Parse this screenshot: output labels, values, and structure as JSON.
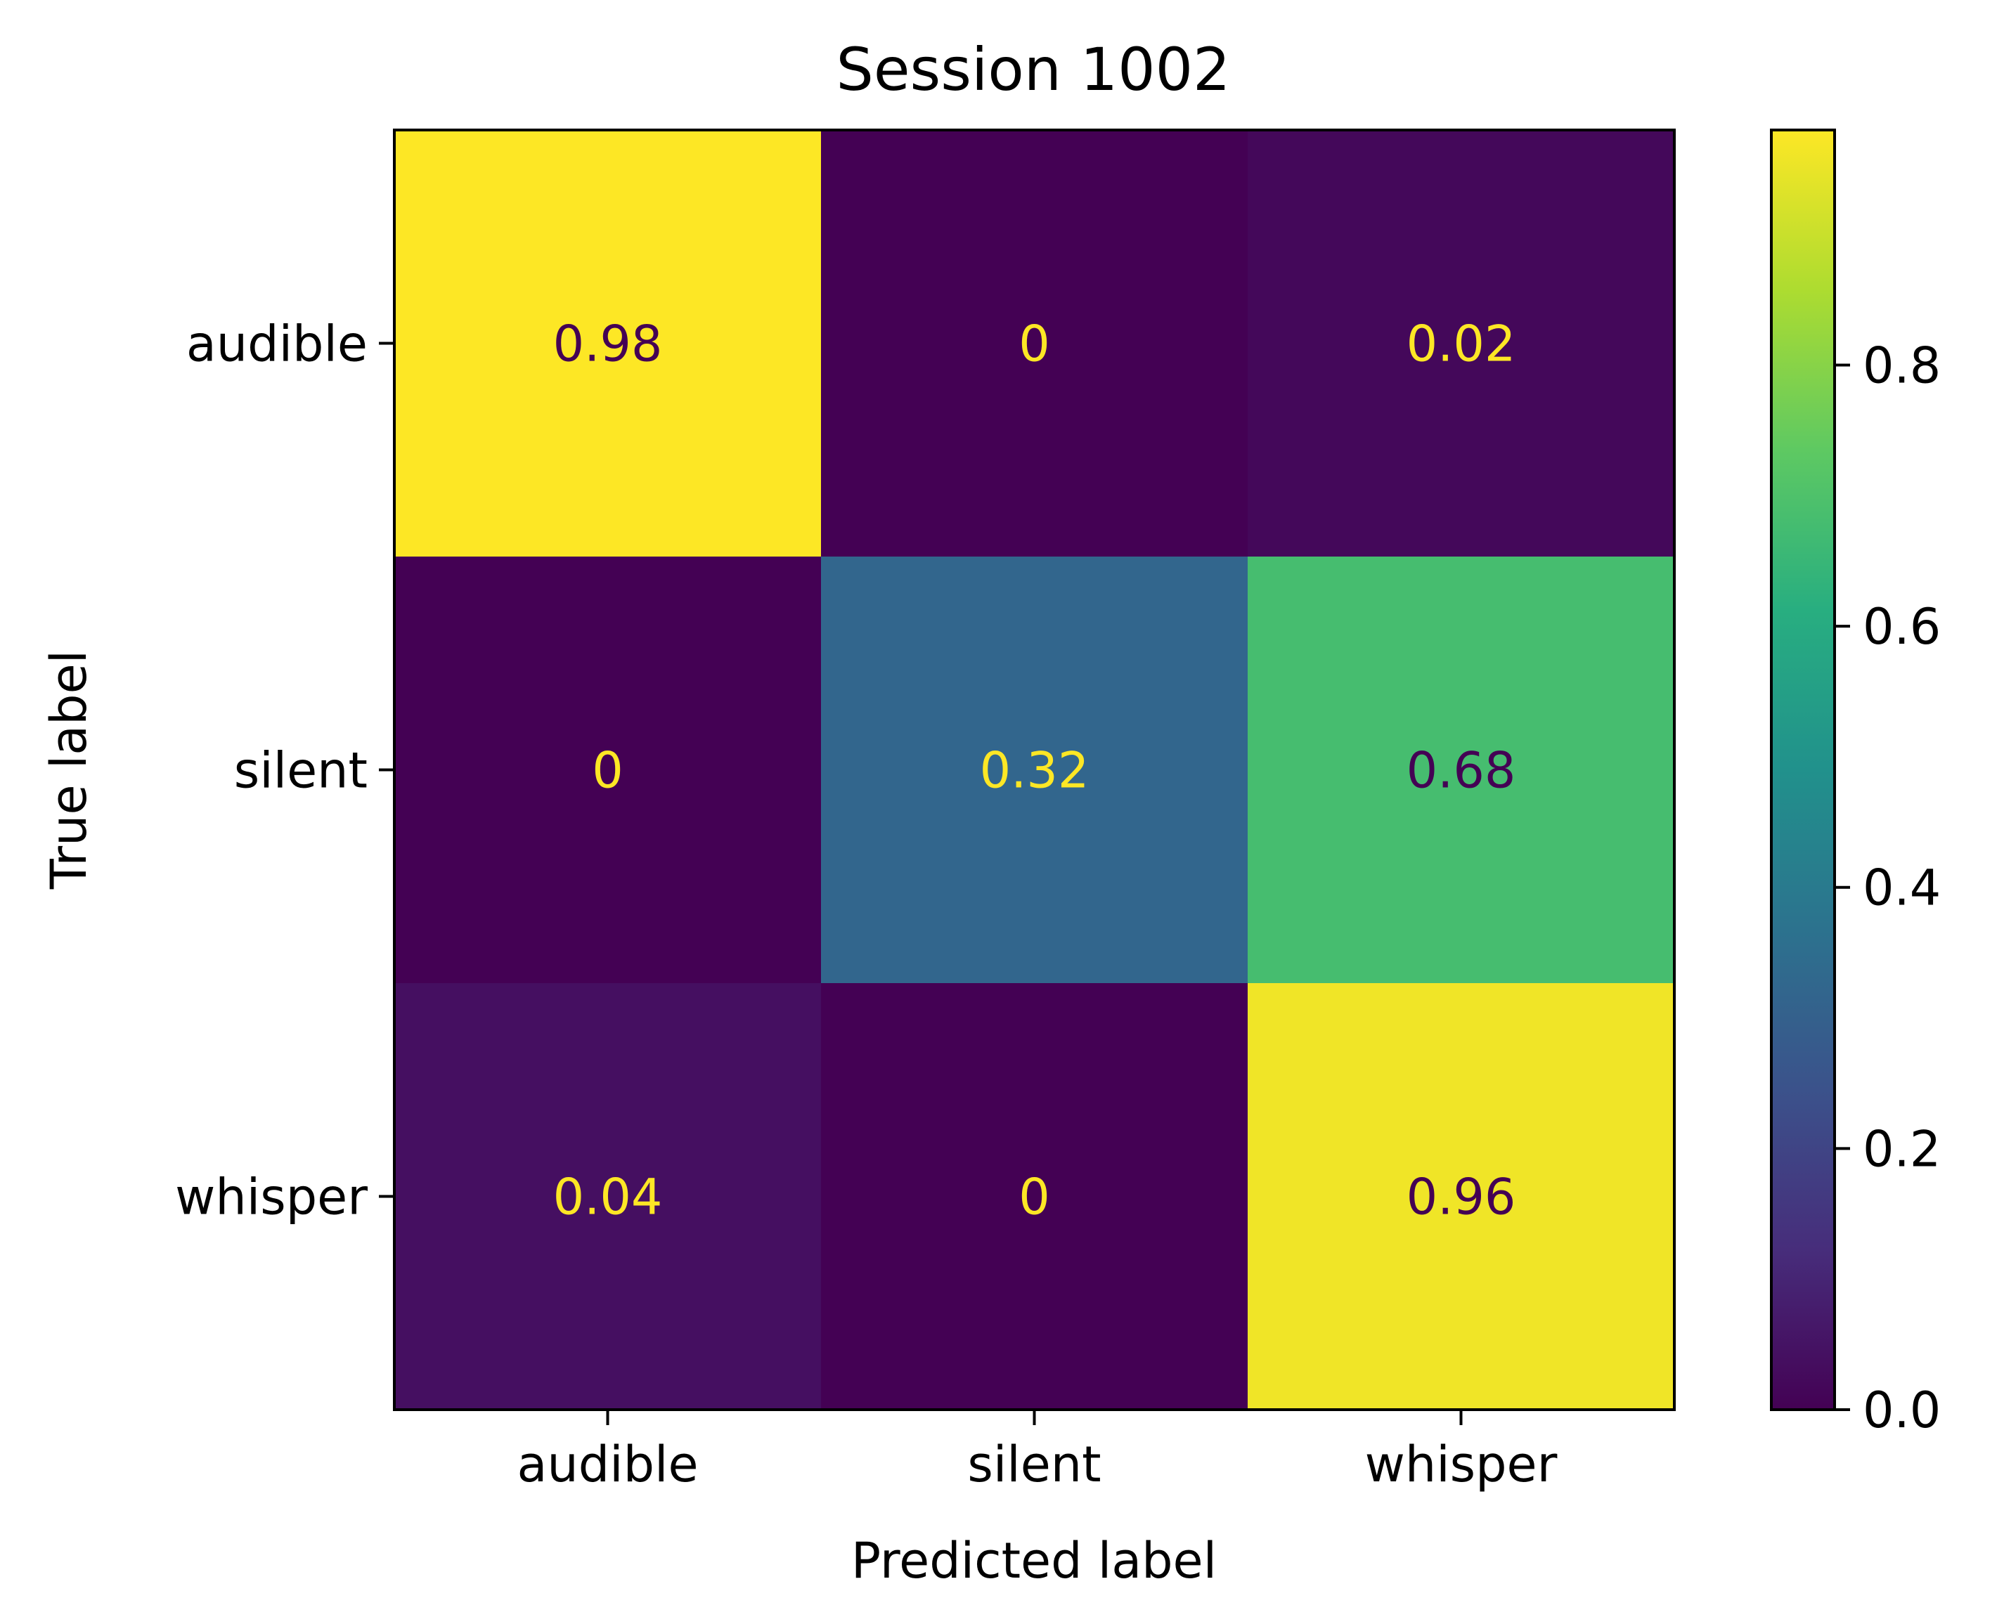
{
  "chart_data": {
    "type": "heatmap",
    "title": "Session 1002",
    "xlabel": "Predicted label",
    "ylabel": "True label",
    "x_categories": [
      "audible",
      "silent",
      "whisper"
    ],
    "y_categories": [
      "audible",
      "silent",
      "whisper"
    ],
    "values": [
      [
        0.98,
        0,
        0.02
      ],
      [
        0,
        0.32,
        0.68
      ],
      [
        0.04,
        0,
        0.96
      ]
    ],
    "cell_labels": [
      [
        "0.98",
        "0",
        "0.02"
      ],
      [
        "0",
        "0.32",
        "0.68"
      ],
      [
        "0.04",
        "0",
        "0.96"
      ]
    ],
    "colormap": "viridis",
    "colorbar": {
      "range": [
        0.0,
        0.98
      ],
      "ticks": [
        0.0,
        0.2,
        0.4,
        0.6,
        0.8
      ],
      "tick_labels": [
        "0.0",
        "0.2",
        "0.4",
        "0.6",
        "0.8"
      ]
    },
    "grid": false
  }
}
